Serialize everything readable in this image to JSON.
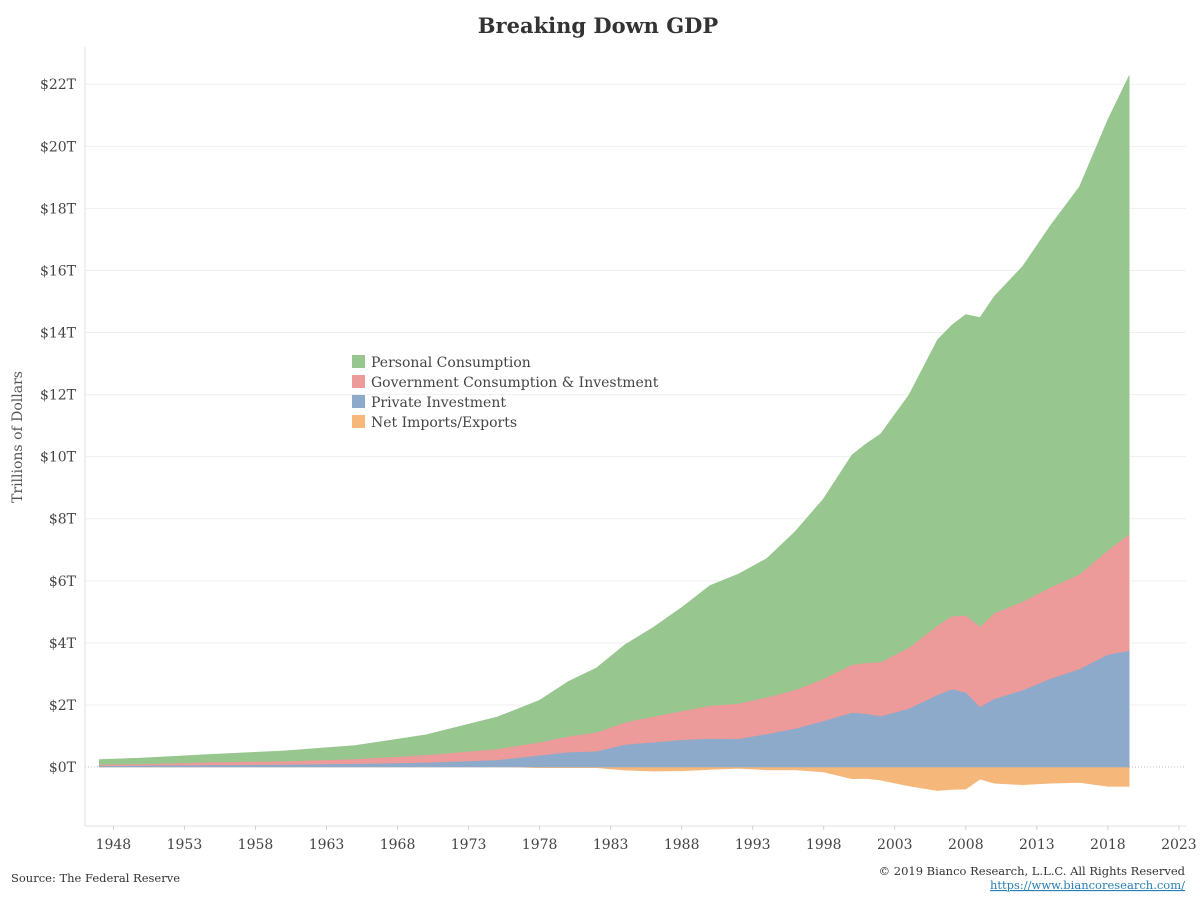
{
  "chart_data": {
    "type": "area",
    "stacked": true,
    "title": "Breaking Down GDP",
    "ylabel": "Trillions of Dollars",
    "xlabel": "",
    "x_ticks": [
      "1948",
      "1953",
      "1958",
      "1963",
      "1968",
      "1973",
      "1978",
      "1983",
      "1988",
      "1993",
      "1998",
      "2003",
      "2008",
      "2013",
      "2018",
      "2023"
    ],
    "y_ticks": [
      "$0T",
      "$2T",
      "$4T",
      "$6T",
      "$8T",
      "$10T",
      "$12T",
      "$14T",
      "$16T",
      "$18T",
      "$20T",
      "$22T"
    ],
    "xlim": [
      1946,
      2023.5
    ],
    "ylim": [
      -1.9,
      23.2
    ],
    "grid": true,
    "legend_position": "center-left",
    "x": [
      1947,
      1950,
      1955,
      1960,
      1965,
      1970,
      1975,
      1978,
      1980,
      1982,
      1984,
      1986,
      1988,
      1990,
      1992,
      1994,
      1996,
      1998,
      2000,
      2001,
      2002,
      2004,
      2006,
      2007,
      2008,
      2009,
      2010,
      2012,
      2014,
      2016,
      2018,
      2019.5
    ],
    "series": [
      {
        "name": "Net Imports/Exports",
        "color": "#f5b87a",
        "values": [
          0.01,
          0.0,
          0.0,
          0.0,
          0.0,
          0.0,
          0.01,
          -0.02,
          -0.02,
          -0.02,
          -0.1,
          -0.13,
          -0.12,
          -0.08,
          -0.04,
          -0.09,
          -0.09,
          -0.16,
          -0.38,
          -0.37,
          -0.42,
          -0.61,
          -0.76,
          -0.72,
          -0.71,
          -0.39,
          -0.52,
          -0.57,
          -0.52,
          -0.5,
          -0.62,
          -0.62
        ]
      },
      {
        "name": "Private Investment",
        "color": "#8eaaca",
        "values": [
          0.04,
          0.05,
          0.07,
          0.08,
          0.11,
          0.15,
          0.23,
          0.38,
          0.48,
          0.51,
          0.73,
          0.8,
          0.88,
          0.92,
          0.91,
          1.07,
          1.24,
          1.49,
          1.76,
          1.72,
          1.64,
          1.89,
          2.33,
          2.51,
          2.41,
          1.94,
          2.2,
          2.48,
          2.86,
          3.16,
          3.63,
          3.75
        ]
      },
      {
        "name": "Government Consumption & Investment",
        "color": "#ec9a9a",
        "values": [
          0.04,
          0.05,
          0.09,
          0.11,
          0.15,
          0.24,
          0.35,
          0.42,
          0.51,
          0.61,
          0.71,
          0.83,
          0.93,
          1.06,
          1.14,
          1.18,
          1.25,
          1.36,
          1.54,
          1.64,
          1.74,
          1.96,
          2.23,
          2.35,
          2.48,
          2.58,
          2.76,
          2.85,
          2.94,
          3.05,
          3.36,
          3.75
        ]
      },
      {
        "name": "Personal Consumption",
        "color": "#97c68f",
        "values": [
          0.16,
          0.19,
          0.25,
          0.33,
          0.43,
          0.65,
          1.03,
          1.35,
          1.76,
          2.07,
          2.5,
          2.87,
          3.33,
          3.87,
          4.17,
          4.47,
          5.1,
          5.8,
          6.76,
          7.06,
          7.35,
          8.14,
          9.2,
          9.37,
          9.69,
          9.96,
          10.2,
          10.8,
          11.67,
          12.49,
          13.87,
          14.78
        ]
      }
    ]
  },
  "footer": {
    "source": "Source: The Federal Reserve",
    "copyright": "© 2019 Bianco Research, L.L.C. All Rights Reserved",
    "link": "https://www.biancoresearch.com/"
  }
}
